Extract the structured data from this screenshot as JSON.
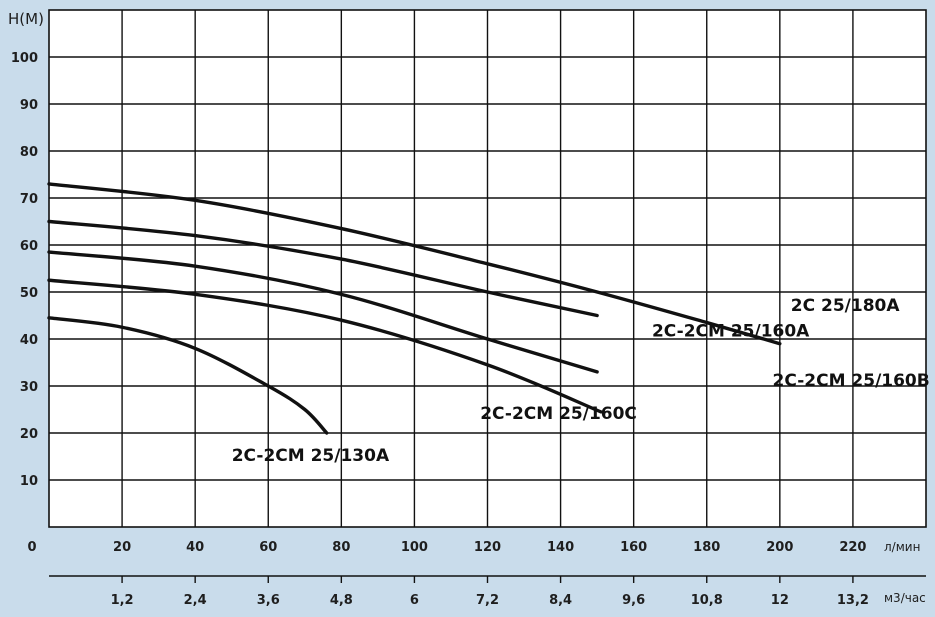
{
  "chart_data": {
    "type": "line",
    "title": "",
    "ylabel": "H(M)",
    "xlabel": "л/мин",
    "x2label": "м3/час",
    "ylim": [
      0,
      110
    ],
    "xlim": [
      0,
      240
    ],
    "grid": true,
    "y_ticks": [
      "10",
      "20",
      "30",
      "40",
      "50",
      "60",
      "70",
      "80",
      "90",
      "100"
    ],
    "y_tick_values": [
      10,
      20,
      30,
      40,
      50,
      60,
      70,
      80,
      90,
      100
    ],
    "x_ticks": [
      "0",
      "20",
      "40",
      "60",
      "80",
      "100",
      "120",
      "140",
      "160",
      "180",
      "200",
      "220"
    ],
    "x_tick_values": [
      0,
      20,
      40,
      60,
      80,
      100,
      120,
      140,
      160,
      180,
      200,
      220
    ],
    "x2_ticks": [
      "1,2",
      "2,4",
      "3,6",
      "4,8",
      "6",
      "7,2",
      "8,4",
      "9,6",
      "10,8",
      "12",
      "13,2"
    ],
    "x2_tick_values": [
      20,
      40,
      60,
      80,
      100,
      120,
      140,
      160,
      180,
      200,
      220
    ],
    "series": [
      {
        "name": "2C 25/180A",
        "x": [
          0,
          40,
          80,
          120,
          150,
          180,
          200
        ],
        "y": [
          73,
          69.5,
          63.5,
          56,
          50,
          43.5,
          39
        ]
      },
      {
        "name": "2C-2CM 25/160A",
        "x": [
          0,
          40,
          80,
          120,
          150
        ],
        "y": [
          65,
          62,
          57,
          50,
          45
        ]
      },
      {
        "name": "2C-2CM 25/160B",
        "x": [
          0,
          40,
          80,
          120,
          150
        ],
        "y": [
          58.5,
          55.5,
          49.5,
          40,
          33
        ]
      },
      {
        "name": "2C-2CM 25/160C",
        "x": [
          0,
          40,
          80,
          120,
          151
        ],
        "y": [
          52.5,
          49.5,
          44,
          34.5,
          24.5
        ]
      },
      {
        "name": "2C-2CM 25/130A",
        "x": [
          0,
          20,
          40,
          60,
          70,
          76
        ],
        "y": [
          44.5,
          42.5,
          38,
          30,
          25,
          20
        ]
      }
    ],
    "annotations": [
      {
        "text": "2C 25/180A",
        "x": 203,
        "y": 46
      },
      {
        "text": "2C-2CM 25/160A",
        "x": 165,
        "y": 40.5
      },
      {
        "text": "2C-2CM 25/160B",
        "x": 198,
        "y": 30
      },
      {
        "text": "2C-2CM 25/160C",
        "x": 118,
        "y": 23
      },
      {
        "text": "2C-2CM 25/130A",
        "x": 50,
        "y": 14
      }
    ]
  }
}
